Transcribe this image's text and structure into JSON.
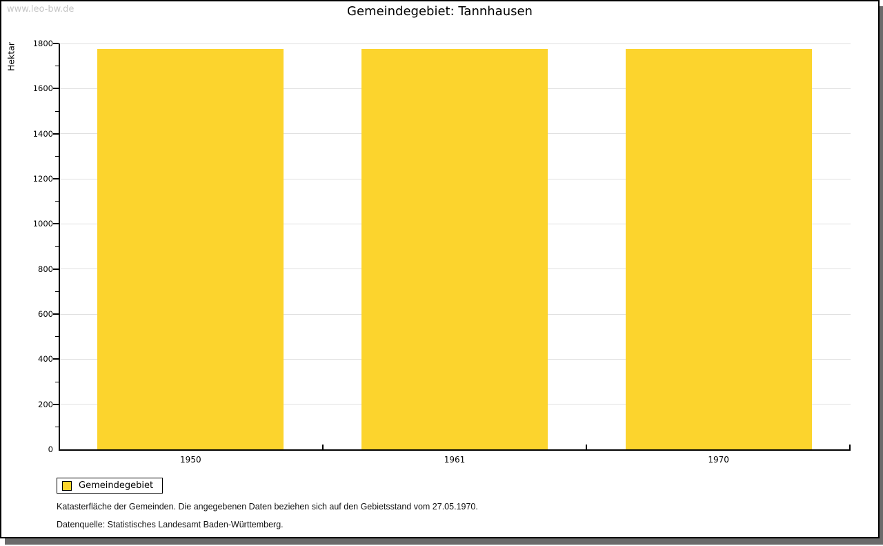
{
  "page": {
    "watermark": "www.leo-bw.de",
    "title": "Gemeindegebiet: Tannhausen"
  },
  "chart_data": {
    "type": "bar",
    "title": "Gemeindegebiet: Tannhausen",
    "categories": [
      "1950",
      "1961",
      "1970"
    ],
    "series": [
      {
        "name": "Gemeindegebiet",
        "values": [
          1775,
          1775,
          1775
        ]
      }
    ],
    "xlabel": "",
    "ylabel": "Hektar",
    "ylim": [
      0,
      1800
    ],
    "ytick_major": 200,
    "ytick_minor": 100,
    "grid": true,
    "legend_position": "bottom-left",
    "bar_color": "#FCD42D"
  },
  "legend": {
    "items": [
      {
        "label": "Gemeindegebiet",
        "color": "#FCD42D"
      }
    ]
  },
  "footer": {
    "line1": "Katasterfläche der Gemeinden. Die angegebenen Daten beziehen sich auf den Gebietsstand vom 27.05.1970.",
    "line2": "Datenquelle: Statistisches Landesamt Baden-Württemberg."
  },
  "colors": {
    "bar": "#FCD42D",
    "gridline": "#e0e0e0",
    "axis": "#000000",
    "watermark": "#c6c6c6",
    "shadow": "#6b6b6b"
  }
}
